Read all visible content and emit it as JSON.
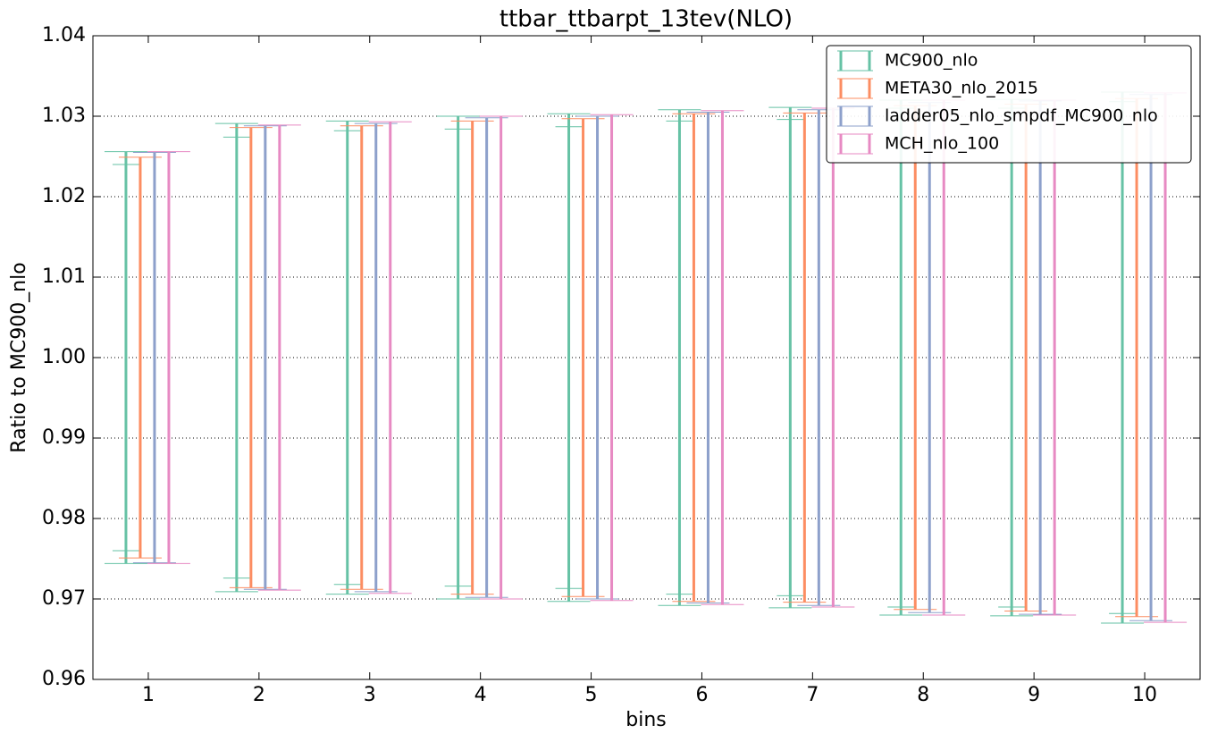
{
  "chart_data": {
    "type": "errorbar",
    "title": "ttbar_ttbarpt_13tev(NLO)",
    "xlabel": "bins",
    "ylabel": "Ratio to MC900_nlo",
    "x": [
      1,
      2,
      3,
      4,
      5,
      6,
      7,
      8,
      9,
      10
    ],
    "xlim": [
      0.5,
      10.5
    ],
    "xticks": [
      1,
      2,
      3,
      4,
      5,
      6,
      7,
      8,
      9,
      10
    ],
    "ylim": [
      0.96,
      1.04
    ],
    "yticks": [
      0.96,
      0.97,
      0.98,
      0.99,
      {
        "value": 1.0,
        "label": "1.00"
      },
      1.01,
      1.02,
      1.03,
      1.04
    ],
    "grid": true,
    "legend": "upper right",
    "series": [
      {
        "name": "MC900_nlo",
        "color": "#66c2a5",
        "values": [
          1,
          1,
          1,
          1,
          1,
          1,
          1,
          1,
          1,
          1
        ],
        "errors": [
          0.0256,
          0.0291,
          0.0294,
          0.03,
          0.0303,
          0.0308,
          0.0311,
          0.032,
          0.0321,
          0.033
        ],
        "inner_errors": [
          0.024,
          0.0274,
          0.0282,
          0.0284,
          0.0287,
          0.0294,
          0.0296,
          0.031,
          0.031,
          0.0318
        ]
      },
      {
        "name": "META30_nlo_2015",
        "color": "#fc8d62",
        "values": [
          1,
          1,
          1,
          1,
          1,
          1,
          1,
          1,
          1,
          1
        ],
        "errors": [
          0.0249,
          0.0286,
          0.0288,
          0.0294,
          0.0297,
          0.0303,
          0.0304,
          0.0313,
          0.0315,
          0.0322
        ]
      },
      {
        "name": "ladder05_nlo_smpdf_MC900_nlo",
        "color": "#8da0cb",
        "values": [
          1,
          1,
          1,
          1,
          1,
          1,
          1,
          1,
          1,
          1
        ],
        "errors": [
          0.0255,
          0.0288,
          0.0291,
          0.0298,
          0.03,
          0.0305,
          0.0308,
          0.0317,
          0.0319,
          0.0327
        ]
      },
      {
        "name": "MCH_nlo_100",
        "color": "#e78ac3",
        "values": [
          1,
          1,
          1,
          1,
          1,
          1,
          1,
          1,
          1,
          1
        ],
        "errors": [
          0.0256,
          0.0289,
          0.0293,
          0.03,
          0.0302,
          0.0307,
          0.031,
          0.032,
          0.032,
          0.0329
        ]
      }
    ]
  }
}
